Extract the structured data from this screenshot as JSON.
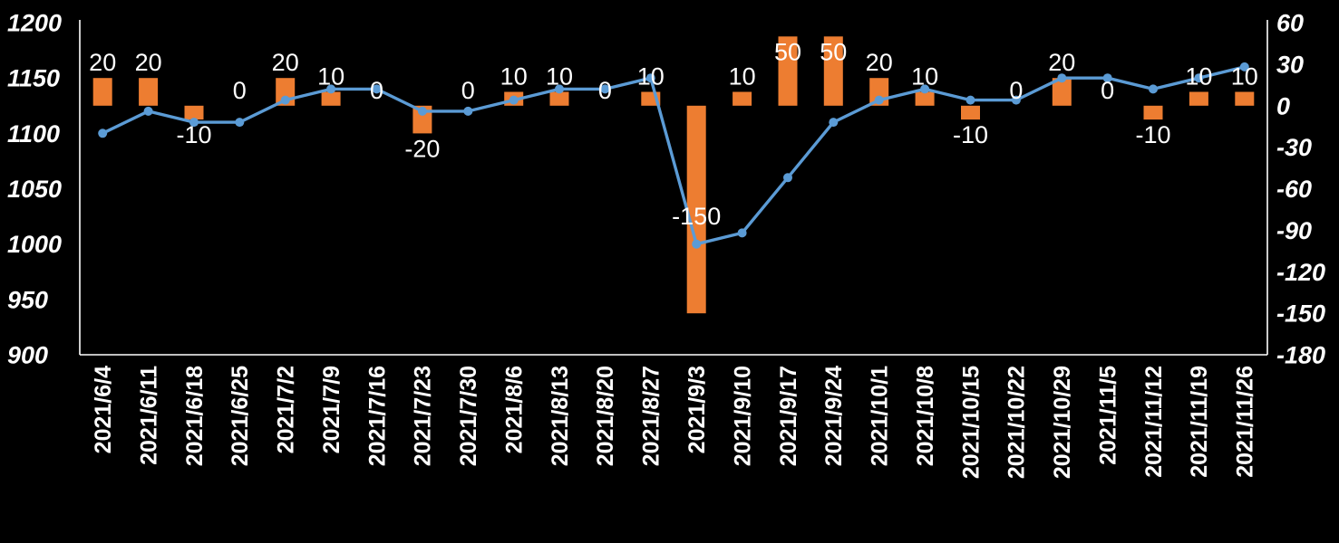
{
  "chart_data": {
    "type": "combo",
    "title": "",
    "background": "#000000",
    "grid": false,
    "legend": "none",
    "categories": [
      "2021/6/4",
      "2021/6/11",
      "2021/6/18",
      "2021/6/25",
      "2021/7/2",
      "2021/7/9",
      "2021/7/16",
      "2021/7/23",
      "2021/7/30",
      "2021/8/6",
      "2021/8/13",
      "2021/8/20",
      "2021/8/27",
      "2021/9/3",
      "2021/9/10",
      "2021/9/17",
      "2021/9/24",
      "2021/10/1",
      "2021/10/8",
      "2021/10/15",
      "2021/10/22",
      "2021/10/29",
      "2021/11/5",
      "2021/11/12",
      "2021/11/19",
      "2021/11/26"
    ],
    "series": [
      {
        "name": "weekly-change-bars",
        "type": "bar",
        "axis": "right",
        "color": "#ED7D31",
        "values": [
          20,
          20,
          -10,
          0,
          20,
          10,
          0,
          -20,
          0,
          10,
          10,
          0,
          10,
          -150,
          10,
          50,
          50,
          20,
          10,
          -10,
          0,
          20,
          0,
          -10,
          10,
          10
        ],
        "data_labels": [
          "20",
          "20",
          "-10",
          "0",
          "20",
          "10",
          "0",
          "-20",
          "0",
          "10",
          "10",
          "0",
          "10",
          "-150",
          "10",
          "50",
          "50",
          "20",
          "10",
          "-10",
          "0",
          "20",
          "0",
          "-10",
          "10",
          "10"
        ]
      },
      {
        "name": "level-line",
        "type": "line",
        "axis": "left",
        "color": "#5B9BD5",
        "values": [
          1100,
          1120,
          1110,
          1110,
          1130,
          1140,
          1140,
          1120,
          1120,
          1130,
          1140,
          1140,
          1150,
          1000,
          1010,
          1060,
          1110,
          1130,
          1140,
          1130,
          1130,
          1150,
          1150,
          1140,
          1150,
          1160
        ]
      }
    ],
    "left_axis": {
      "min": 900,
      "max": 1200,
      "ticks": [
        "1200",
        "1150",
        "1100",
        "1050",
        "1000",
        "950",
        "900"
      ],
      "tick_values": [
        1200,
        1150,
        1100,
        1050,
        1000,
        950,
        900
      ]
    },
    "right_axis": {
      "min": -180,
      "max": 60,
      "ticks": [
        "60",
        "30",
        "0",
        "-30",
        "-60",
        "-90",
        "-120",
        "-150",
        "-180"
      ],
      "tick_values": [
        60,
        30,
        0,
        -30,
        -60,
        -90,
        -120,
        -150,
        -180
      ]
    },
    "axis_line_color": "#FFFFFF",
    "text_color": "#FFFFFF"
  }
}
